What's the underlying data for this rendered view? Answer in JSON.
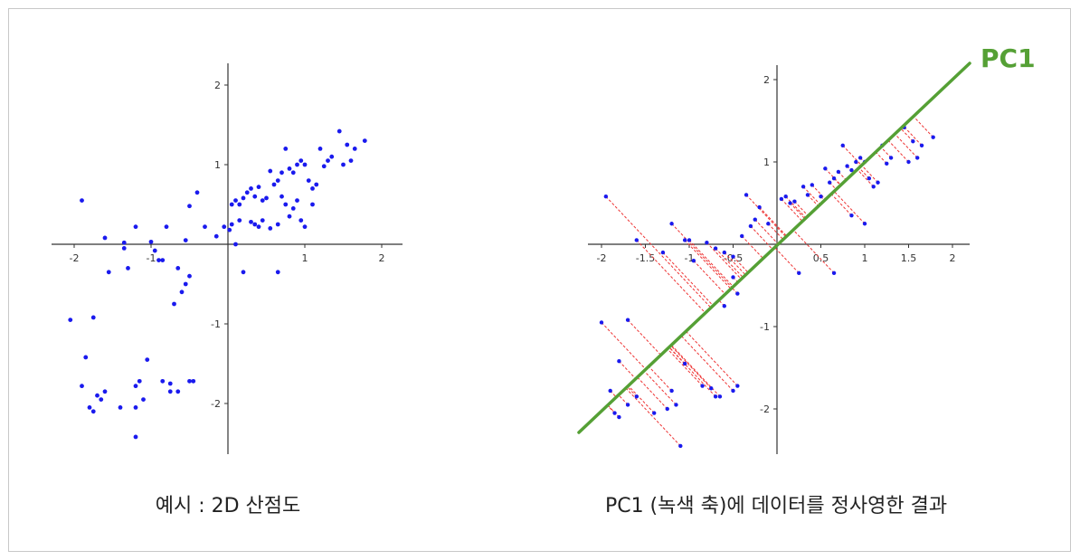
{
  "captions": {
    "left": "예시 : 2D 산점도",
    "right": "PC1 (녹색 축)에 데이터를 정사영한 결과"
  },
  "colors": {
    "point": "#1a1aee",
    "projection": "#ee3333",
    "pc1": "#55a035",
    "axis": "#333333"
  },
  "chart_data": [
    {
      "type": "scatter",
      "x_ticks": [
        "-2",
        "-1",
        "1",
        "2"
      ],
      "y_ticks": [
        "2",
        "1",
        "-1",
        "-2"
      ],
      "xlim": [
        -2.3,
        2.3
      ],
      "ylim": [
        -2.6,
        2.3
      ],
      "series": [
        {
          "points": [
            [
              -1.9,
              0.55
            ],
            [
              -1.6,
              0.08
            ],
            [
              -1.35,
              0.02
            ],
            [
              -1.2,
              0.22
            ],
            [
              -1.0,
              0.03
            ],
            [
              -0.8,
              0.22
            ],
            [
              -0.55,
              0.05
            ],
            [
              -0.5,
              0.48
            ],
            [
              -0.4,
              0.65
            ],
            [
              -0.3,
              0.22
            ],
            [
              -0.15,
              0.1
            ],
            [
              -0.05,
              0.22
            ],
            [
              0.02,
              0.18
            ],
            [
              0.05,
              0.25
            ],
            [
              -0.95,
              -0.08
            ],
            [
              -0.9,
              -0.2
            ],
            [
              -0.85,
              -0.2
            ],
            [
              -0.65,
              -0.3
            ],
            [
              -0.6,
              -0.6
            ],
            [
              -0.55,
              -0.5
            ],
            [
              -0.5,
              -0.4
            ],
            [
              -0.7,
              -0.75
            ],
            [
              -1.55,
              -0.35
            ],
            [
              -1.3,
              -0.3
            ],
            [
              -1.35,
              -0.05
            ],
            [
              0.1,
              0.0
            ],
            [
              0.05,
              0.5
            ],
            [
              0.1,
              0.55
            ],
            [
              0.15,
              0.5
            ],
            [
              0.2,
              0.58
            ],
            [
              0.25,
              0.65
            ],
            [
              0.3,
              0.7
            ],
            [
              0.35,
              0.6
            ],
            [
              0.4,
              0.72
            ],
            [
              0.45,
              0.55
            ],
            [
              0.5,
              0.58
            ],
            [
              0.55,
              0.92
            ],
            [
              0.6,
              0.75
            ],
            [
              0.65,
              0.8
            ],
            [
              0.7,
              0.9
            ],
            [
              0.75,
              1.2
            ],
            [
              0.8,
              0.95
            ],
            [
              0.85,
              0.9
            ],
            [
              0.9,
              1.0
            ],
            [
              0.95,
              1.05
            ],
            [
              1.0,
              1.0
            ],
            [
              1.05,
              0.8
            ],
            [
              1.1,
              0.7
            ],
            [
              1.15,
              0.75
            ],
            [
              1.2,
              1.2
            ],
            [
              1.25,
              0.98
            ],
            [
              1.3,
              1.05
            ],
            [
              1.35,
              1.1
            ],
            [
              1.45,
              1.42
            ],
            [
              1.5,
              1.0
            ],
            [
              1.55,
              1.25
            ],
            [
              1.6,
              1.05
            ],
            [
              1.65,
              1.2
            ],
            [
              1.78,
              1.3
            ],
            [
              0.65,
              0.25
            ],
            [
              0.75,
              0.5
            ],
            [
              0.85,
              0.45
            ],
            [
              0.95,
              0.3
            ],
            [
              1.0,
              0.22
            ],
            [
              0.9,
              0.55
            ],
            [
              1.1,
              0.5
            ],
            [
              0.3,
              0.28
            ],
            [
              0.4,
              0.22
            ],
            [
              0.2,
              -0.35
            ],
            [
              0.45,
              0.3
            ],
            [
              0.35,
              0.25
            ],
            [
              0.65,
              -0.35
            ],
            [
              0.55,
              0.2
            ],
            [
              0.7,
              0.6
            ],
            [
              0.8,
              0.35
            ],
            [
              0.15,
              0.3
            ],
            [
              -2.05,
              -0.95
            ],
            [
              -1.9,
              -1.78
            ],
            [
              -1.8,
              -2.05
            ],
            [
              -1.75,
              -2.1
            ],
            [
              -1.7,
              -1.9
            ],
            [
              -1.85,
              -1.42
            ],
            [
              -1.75,
              -0.92
            ],
            [
              -1.65,
              -1.95
            ],
            [
              -1.6,
              -1.85
            ],
            [
              -1.4,
              -2.05
            ],
            [
              -1.2,
              -1.78
            ],
            [
              -1.2,
              -2.05
            ],
            [
              -1.15,
              -1.72
            ],
            [
              -1.1,
              -1.95
            ],
            [
              -1.05,
              -1.45
            ],
            [
              -0.85,
              -1.72
            ],
            [
              -0.75,
              -1.75
            ],
            [
              -0.75,
              -1.85
            ],
            [
              -0.65,
              -1.85
            ],
            [
              -0.5,
              -1.72
            ],
            [
              -0.45,
              -1.72
            ],
            [
              -1.2,
              -2.42
            ]
          ]
        }
      ]
    },
    {
      "type": "scatter",
      "x_ticks": [
        "-2",
        "-1.5",
        "-1",
        "-0.5",
        "0.5",
        "1",
        "1.5",
        "2"
      ],
      "y_ticks": [
        "2",
        "1",
        "-1",
        "-2"
      ],
      "xlim": [
        -2.2,
        2.2
      ],
      "ylim": [
        -2.6,
        2.3
      ],
      "pc1_label": "PC1",
      "series": [
        {
          "points": [
            [
              -1.95,
              0.58
            ],
            [
              -1.6,
              0.05
            ],
            [
              -1.3,
              -0.1
            ],
            [
              -1.2,
              0.25
            ],
            [
              -1.0,
              0.05
            ],
            [
              -0.8,
              0.02
            ],
            [
              -0.7,
              -0.05
            ],
            [
              -0.6,
              -0.1
            ],
            [
              -0.5,
              -0.15
            ],
            [
              -0.4,
              0.1
            ],
            [
              -0.35,
              0.6
            ],
            [
              -0.25,
              0.3
            ],
            [
              -0.1,
              0.25
            ],
            [
              0.05,
              0.55
            ],
            [
              0.1,
              0.58
            ],
            [
              0.15,
              0.5
            ],
            [
              0.2,
              0.52
            ],
            [
              0.3,
              0.7
            ],
            [
              0.35,
              0.6
            ],
            [
              0.4,
              0.72
            ],
            [
              0.5,
              0.58
            ],
            [
              0.55,
              0.92
            ],
            [
              0.6,
              0.75
            ],
            [
              0.65,
              0.8
            ],
            [
              0.7,
              0.88
            ],
            [
              0.75,
              1.2
            ],
            [
              0.8,
              0.95
            ],
            [
              0.85,
              0.9
            ],
            [
              0.9,
              1.0
            ],
            [
              0.95,
              1.05
            ],
            [
              1.0,
              1.0
            ],
            [
              1.05,
              0.8
            ],
            [
              1.1,
              0.7
            ],
            [
              1.15,
              0.75
            ],
            [
              1.2,
              1.2
            ],
            [
              1.25,
              0.98
            ],
            [
              1.3,
              1.05
            ],
            [
              1.45,
              1.42
            ],
            [
              1.55,
              1.25
            ],
            [
              1.6,
              1.05
            ],
            [
              1.65,
              1.2
            ],
            [
              1.78,
              1.3
            ],
            [
              1.5,
              1.0
            ],
            [
              0.25,
              -0.35
            ],
            [
              0.65,
              -0.35
            ],
            [
              1.0,
              0.25
            ],
            [
              0.85,
              0.35
            ],
            [
              -0.2,
              0.45
            ],
            [
              -0.45,
              -0.6
            ],
            [
              -0.5,
              -0.4
            ],
            [
              -0.6,
              -0.75
            ],
            [
              -1.05,
              0.05
            ],
            [
              -0.95,
              -0.2
            ],
            [
              -0.3,
              0.22
            ],
            [
              -2.0,
              -0.95
            ],
            [
              -1.7,
              -0.92
            ],
            [
              -1.8,
              -1.42
            ],
            [
              -1.9,
              -1.78
            ],
            [
              -1.85,
              -2.05
            ],
            [
              -1.8,
              -2.1
            ],
            [
              -1.7,
              -1.95
            ],
            [
              -1.6,
              -1.85
            ],
            [
              -1.4,
              -2.05
            ],
            [
              -1.2,
              -1.78
            ],
            [
              -1.15,
              -1.95
            ],
            [
              -1.05,
              -1.45
            ],
            [
              -0.85,
              -1.72
            ],
            [
              -0.75,
              -1.75
            ],
            [
              -0.7,
              -1.85
            ],
            [
              -0.65,
              -1.85
            ],
            [
              -0.45,
              -1.72
            ],
            [
              -0.5,
              -1.78
            ],
            [
              -1.1,
              -2.45
            ],
            [
              -1.25,
              -2.0
            ]
          ]
        }
      ]
    }
  ]
}
